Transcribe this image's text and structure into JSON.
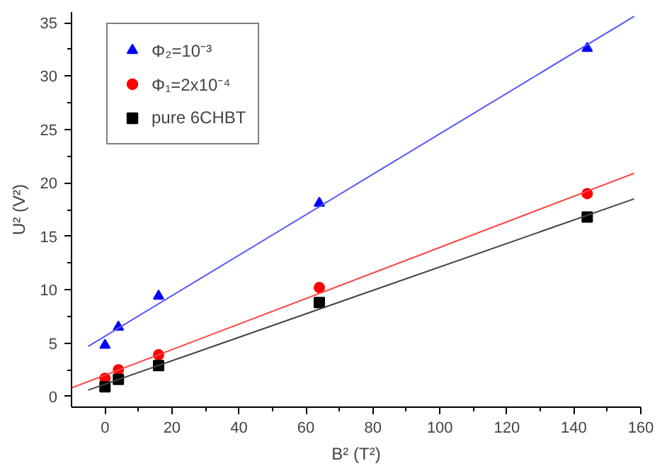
{
  "chart_data": {
    "type": "scatter",
    "xlabel": "B² (T²)",
    "ylabel": "U² (V²)",
    "xlim": [
      -10,
      160
    ],
    "ylim": [
      -1,
      36
    ],
    "xticks": [
      0,
      20,
      40,
      60,
      80,
      100,
      120,
      140,
      160
    ],
    "yticks": [
      0,
      5,
      10,
      15,
      20,
      25,
      30,
      35
    ],
    "grid": false,
    "legend": "top left",
    "series": [
      {
        "name": "Φ₂=10⁻³",
        "color": "#0000ff",
        "marker": "triangle",
        "x": [
          0,
          4,
          16,
          64,
          144
        ],
        "values": [
          4.8,
          6.5,
          9.4,
          18.1,
          32.6
        ]
      },
      {
        "name": "Φ₁=2x10⁻⁴",
        "color": "#ff0000",
        "marker": "circle",
        "x": [
          0,
          4,
          16,
          64,
          144
        ],
        "values": [
          1.7,
          2.5,
          3.9,
          10.2,
          19.0
        ]
      },
      {
        "name": "pure 6CHBT",
        "color": "#000000",
        "marker": "square",
        "x": [
          0,
          4,
          16,
          64,
          144
        ],
        "values": [
          0.9,
          1.6,
          2.9,
          8.8,
          16.8
        ]
      },
      {
        "type": "line",
        "color": "#5555ff",
        "marker": "none",
        "x": [
          -5,
          158
        ],
        "values": [
          4.7,
          35.6
        ]
      },
      {
        "type": "line",
        "color": "#ff4444",
        "marker": "none",
        "x": [
          -10,
          158
        ],
        "values": [
          0.8,
          20.9
        ]
      },
      {
        "type": "line",
        "color": "#444444",
        "marker": "none",
        "x": [
          -5,
          158
        ],
        "values": [
          0.6,
          18.5
        ]
      }
    ]
  }
}
